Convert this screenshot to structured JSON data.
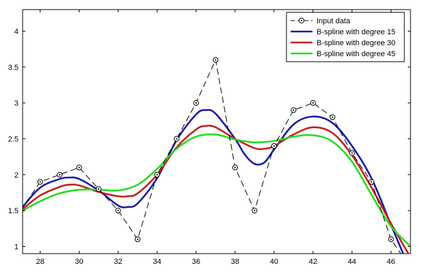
{
  "chart_data": {
    "type": "line",
    "title": "",
    "xlabel": "",
    "ylabel": "",
    "xlim": [
      27.1,
      47
    ],
    "ylim": [
      0.9,
      4.3
    ],
    "xticks": [
      28,
      30,
      32,
      34,
      36,
      38,
      40,
      42,
      44,
      46
    ],
    "yticks": [
      1,
      1.5,
      2,
      2.5,
      3,
      3.5,
      4
    ],
    "xtick_labels": [
      "28",
      "30",
      "32",
      "34",
      "36",
      "38",
      "40",
      "42",
      "44",
      "46"
    ],
    "ytick_labels": [
      "1",
      "1.5",
      "2",
      "2.5",
      "3",
      "3.5",
      "4"
    ],
    "grid": false,
    "legend_position": "top-right",
    "series": [
      {
        "name": "Input data",
        "style": "dashed-markers",
        "color": "#000000",
        "x": [
          27,
          28,
          29,
          30,
          31,
          32,
          33,
          34,
          35,
          36,
          37,
          38,
          39,
          40,
          41,
          42,
          43,
          44,
          45,
          46,
          47
        ],
        "y": [
          1.5,
          1.9,
          2.0,
          2.1,
          1.8,
          1.5,
          1.1,
          2.0,
          2.5,
          3.0,
          3.6,
          2.1,
          1.5,
          2.4,
          2.9,
          3.0,
          2.8,
          2.3,
          1.9,
          1.1,
          0.7
        ]
      },
      {
        "name": "B-spline with degree 15",
        "style": "solid",
        "color": "#1a1aa8",
        "x": [
          27.1,
          28,
          29,
          29.5,
          30,
          31,
          32,
          32.5,
          33,
          34,
          35,
          36,
          36.5,
          37,
          38,
          38.5,
          39,
          39.5,
          40,
          41,
          42,
          43,
          44,
          45,
          46,
          46.7
        ],
        "y": [
          1.55,
          1.82,
          1.94,
          1.96,
          1.94,
          1.78,
          1.57,
          1.55,
          1.6,
          1.95,
          2.48,
          2.84,
          2.9,
          2.85,
          2.5,
          2.28,
          2.15,
          2.17,
          2.35,
          2.7,
          2.81,
          2.72,
          2.4,
          1.95,
          1.3,
          0.85
        ]
      },
      {
        "name": "B-spline with degree 30",
        "style": "solid",
        "color": "#c81e1e",
        "x": [
          27.1,
          28,
          29,
          29.5,
          30,
          31,
          32,
          32.5,
          33,
          34,
          35,
          36,
          36.5,
          37,
          38,
          39,
          39.5,
          40,
          41,
          42,
          43,
          44,
          45,
          46,
          47
        ],
        "y": [
          1.52,
          1.71,
          1.83,
          1.86,
          1.85,
          1.76,
          1.7,
          1.7,
          1.74,
          2.0,
          2.38,
          2.63,
          2.68,
          2.66,
          2.5,
          2.37,
          2.36,
          2.4,
          2.56,
          2.66,
          2.58,
          2.27,
          1.82,
          1.32,
          0.85
        ]
      },
      {
        "name": "B-spline with degree 45",
        "style": "solid",
        "color": "#22dd22",
        "x": [
          27.1,
          28,
          29,
          30,
          31,
          32,
          33,
          34,
          35,
          36,
          37,
          38,
          39,
          40,
          41,
          42,
          43,
          44,
          45,
          46,
          47
        ],
        "y": [
          1.5,
          1.63,
          1.74,
          1.79,
          1.79,
          1.78,
          1.86,
          2.08,
          2.36,
          2.53,
          2.56,
          2.49,
          2.45,
          2.47,
          2.53,
          2.55,
          2.46,
          2.18,
          1.72,
          1.28,
          1.0
        ]
      }
    ]
  }
}
